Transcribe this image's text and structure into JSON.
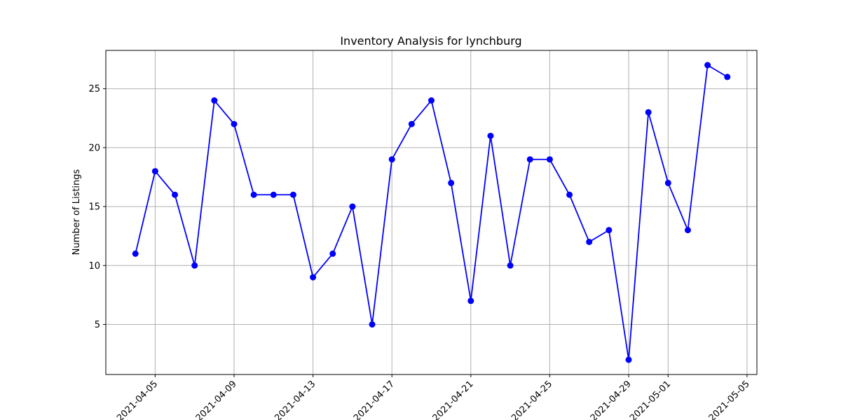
{
  "chart_data": {
    "type": "line",
    "title": "Inventory Analysis for lynchburg",
    "xlabel": "",
    "ylabel": "Number of Listings",
    "x": [
      "2021-04-04",
      "2021-04-05",
      "2021-04-06",
      "2021-04-07",
      "2021-04-08",
      "2021-04-09",
      "2021-04-10",
      "2021-04-11",
      "2021-04-12",
      "2021-04-13",
      "2021-04-14",
      "2021-04-15",
      "2021-04-16",
      "2021-04-17",
      "2021-04-18",
      "2021-04-19",
      "2021-04-20",
      "2021-04-21",
      "2021-04-22",
      "2021-04-23",
      "2021-04-24",
      "2021-04-25",
      "2021-04-26",
      "2021-04-27",
      "2021-04-28",
      "2021-04-29",
      "2021-04-30",
      "2021-05-01",
      "2021-05-02",
      "2021-05-03",
      "2021-05-04"
    ],
    "series": [
      {
        "values": [
          11,
          18,
          16,
          10,
          24,
          22,
          16,
          16,
          16,
          9,
          11,
          15,
          5,
          19,
          22,
          24,
          17,
          7,
          21,
          10,
          19,
          19,
          16,
          12,
          13,
          2,
          23,
          17,
          13,
          27,
          26
        ],
        "color": "#0000ff",
        "marker": "circle"
      }
    ],
    "x_ticks": [
      "2021-04-05",
      "2021-04-09",
      "2021-04-13",
      "2021-04-17",
      "2021-04-21",
      "2021-04-25",
      "2021-04-29",
      "2021-05-01",
      "2021-05-05"
    ],
    "y_ticks": [
      5,
      10,
      15,
      20,
      25
    ],
    "xlim": [
      "2021-04-02T12:00",
      "2021-05-05T12:00"
    ],
    "ylim": [
      0.75,
      28.25
    ],
    "grid": true,
    "legend": "none"
  }
}
